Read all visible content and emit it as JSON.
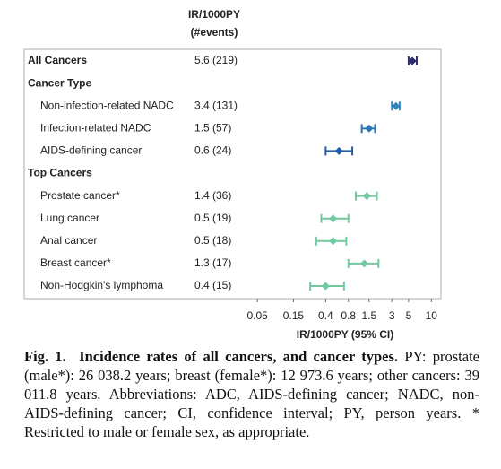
{
  "chart_data": {
    "type": "forest",
    "column_header": [
      "IR/1000PY",
      "(#events)"
    ],
    "xlabel": "IR/1000PY (95% CI)",
    "log_scale": true,
    "xlim": [
      0.04,
      12
    ],
    "xticks": [
      0.05,
      0.15,
      0.4,
      0.8,
      1.5,
      3,
      5,
      10
    ],
    "rows": [
      {
        "label": "All Cancers",
        "bold": true,
        "value_label": "5.6 (219)",
        "value": 5.6,
        "lower": 5.0,
        "upper": 6.4,
        "color": "#2b2d6e"
      },
      {
        "label": "Cancer Type",
        "bold": true
      },
      {
        "label": "Non-infection-related NADC",
        "value_label": "3.4 (131)",
        "value": 3.4,
        "lower": 3.0,
        "upper": 3.8,
        "color": "#2e86c1"
      },
      {
        "label": "Infection-related NADC",
        "value_label": "1.5 (57)",
        "value": 1.5,
        "lower": 1.2,
        "upper": 1.8,
        "color": "#2c74b5"
      },
      {
        "label": "AIDS-defining cancer",
        "value_label": "0.6 (24)",
        "value": 0.6,
        "lower": 0.4,
        "upper": 0.9,
        "color": "#1f5fa8"
      },
      {
        "label": "Top Cancers",
        "bold": true
      },
      {
        "label": "Prostate cancer*",
        "value_label": "1.4 (36)",
        "value": 1.4,
        "lower": 1.0,
        "upper": 1.9,
        "color": "#72c9a0"
      },
      {
        "label": "Lung cancer",
        "value_label": "0.5 (19)",
        "value": 0.5,
        "lower": 0.35,
        "upper": 0.8,
        "color": "#72c9a0"
      },
      {
        "label": "Anal cancer",
        "value_label": "0.5 (18)",
        "value": 0.5,
        "lower": 0.3,
        "upper": 0.75,
        "color": "#72c9a0"
      },
      {
        "label": "Breast cancer*",
        "value_label": "1.3 (17)",
        "value": 1.3,
        "lower": 0.8,
        "upper": 2.0,
        "color": "#72c9a0"
      },
      {
        "label": "Non-Hodgkin's lymphoma",
        "value_label": "0.4 (15)",
        "value": 0.4,
        "lower": 0.25,
        "upper": 0.7,
        "color": "#72c9a0"
      }
    ]
  },
  "caption": {
    "label": "Fig. 1.",
    "title": "Incidence rates of all cancers, and cancer types.",
    "text": "PY: prostate (male*): 26 038.2 years; breast (female*): 12 973.6 years; other cancers: 39 011.8 years. Abbreviations: ADC, AIDS-defining cancer; NADC, non-AIDS-defining cancer; CI, confidence interval; PY, person years. * Restricted to male or female sex, as appropriate."
  }
}
